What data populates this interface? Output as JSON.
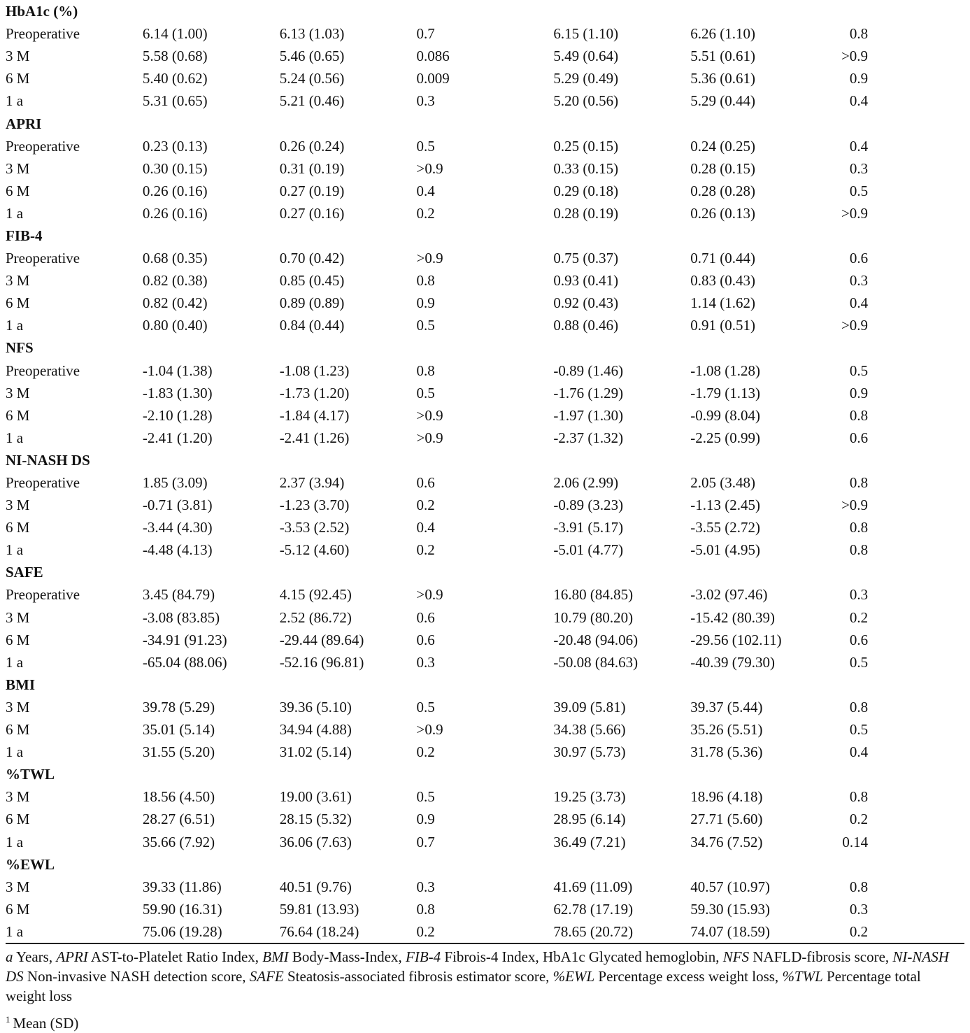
{
  "sections": [
    {
      "title": "HbA1c (%)",
      "rows": [
        {
          "label": "Preoperative",
          "v1": "6.14 (1.00)",
          "v2": "6.13 (1.03)",
          "p1": "0.7",
          "v3": "6.15 (1.10)",
          "v4": "6.26 (1.10)",
          "p2": "0.8"
        },
        {
          "label": "3 M",
          "v1": "5.58 (0.68)",
          "v2": "5.46 (0.65)",
          "p1": "0.086",
          "v3": "5.49 (0.64)",
          "v4": "5.51 (0.61)",
          "p2": ">0.9"
        },
        {
          "label": "6 M",
          "v1": "5.40 (0.62)",
          "v2": "5.24 (0.56)",
          "p1": "0.009",
          "v3": "5.29 (0.49)",
          "v4": "5.36 (0.61)",
          "p2": "0.9"
        },
        {
          "label": "1 a",
          "v1": "5.31 (0.65)",
          "v2": "5.21 (0.46)",
          "p1": "0.3",
          "v3": "5.20 (0.56)",
          "v4": "5.29 (0.44)",
          "p2": "0.4"
        }
      ]
    },
    {
      "title": "APRI",
      "rows": [
        {
          "label": "Preoperative",
          "v1": "0.23 (0.13)",
          "v2": "0.26 (0.24)",
          "p1": "0.5",
          "v3": "0.25 (0.15)",
          "v4": "0.24 (0.25)",
          "p2": "0.4"
        },
        {
          "label": "3 M",
          "v1": "0.30 (0.15)",
          "v2": "0.31 (0.19)",
          "p1": ">0.9",
          "v3": "0.33 (0.15)",
          "v4": "0.28 (0.15)",
          "p2": "0.3"
        },
        {
          "label": "6 M",
          "v1": "0.26 (0.16)",
          "v2": "0.27 (0.19)",
          "p1": "0.4",
          "v3": "0.29 (0.18)",
          "v4": "0.28 (0.28)",
          "p2": "0.5"
        },
        {
          "label": "1 a",
          "v1": "0.26 (0.16)",
          "v2": "0.27 (0.16)",
          "p1": "0.2",
          "v3": "0.28 (0.19)",
          "v4": "0.26 (0.13)",
          "p2": ">0.9"
        }
      ]
    },
    {
      "title": "FIB-4",
      "rows": [
        {
          "label": "Preoperative",
          "v1": "0.68 (0.35)",
          "v2": "0.70 (0.42)",
          "p1": ">0.9",
          "v3": "0.75 (0.37)",
          "v4": "0.71 (0.44)",
          "p2": "0.6"
        },
        {
          "label": "3 M",
          "v1": "0.82 (0.38)",
          "v2": "0.85 (0.45)",
          "p1": "0.8",
          "v3": "0.93 (0.41)",
          "v4": "0.83 (0.43)",
          "p2": "0.3"
        },
        {
          "label": "6 M",
          "v1": "0.82 (0.42)",
          "v2": "0.89 (0.89)",
          "p1": "0.9",
          "v3": "0.92 (0.43)",
          "v4": "1.14 (1.62)",
          "p2": "0.4"
        },
        {
          "label": "1 a",
          "v1": "0.80 (0.40)",
          "v2": "0.84 (0.44)",
          "p1": "0.5",
          "v3": "0.88 (0.46)",
          "v4": "0.91 (0.51)",
          "p2": ">0.9"
        }
      ]
    },
    {
      "title": "NFS",
      "rows": [
        {
          "label": "Preoperative",
          "v1": "-1.04 (1.38)",
          "v2": "-1.08 (1.23)",
          "p1": "0.8",
          "v3": "-0.89 (1.46)",
          "v4": "-1.08 (1.28)",
          "p2": "0.5"
        },
        {
          "label": "3 M",
          "v1": "-1.83 (1.30)",
          "v2": "-1.73 (1.20)",
          "p1": "0.5",
          "v3": "-1.76 (1.29)",
          "v4": "-1.79 (1.13)",
          "p2": "0.9"
        },
        {
          "label": "6 M",
          "v1": "-2.10 (1.28)",
          "v2": "-1.84 (4.17)",
          "p1": ">0.9",
          "v3": "-1.97 (1.30)",
          "v4": "-0.99 (8.04)",
          "p2": "0.8"
        },
        {
          "label": "1 a",
          "v1": "-2.41 (1.20)",
          "v2": "-2.41 (1.26)",
          "p1": ">0.9",
          "v3": "-2.37 (1.32)",
          "v4": "-2.25 (0.99)",
          "p2": "0.6"
        }
      ]
    },
    {
      "title": "NI-NASH DS",
      "rows": [
        {
          "label": "Preoperative",
          "v1": "1.85 (3.09)",
          "v2": "2.37 (3.94)",
          "p1": "0.6",
          "v3": "2.06 (2.99)",
          "v4": "2.05 (3.48)",
          "p2": "0.8"
        },
        {
          "label": "3 M",
          "v1": "-0.71 (3.81)",
          "v2": "-1.23 (3.70)",
          "p1": "0.2",
          "v3": "-0.89 (3.23)",
          "v4": "-1.13 (2.45)",
          "p2": ">0.9"
        },
        {
          "label": "6 M",
          "v1": "-3.44 (4.30)",
          "v2": "-3.53 (2.52)",
          "p1": "0.4",
          "v3": "-3.91 (5.17)",
          "v4": "-3.55 (2.72)",
          "p2": "0.8"
        },
        {
          "label": "1 a",
          "v1": "-4.48 (4.13)",
          "v2": "-5.12 (4.60)",
          "p1": "0.2",
          "v3": "-5.01 (4.77)",
          "v4": "-5.01 (4.95)",
          "p2": "0.8"
        }
      ]
    },
    {
      "title": "SAFE",
      "rows": [
        {
          "label": "Preoperative",
          "v1": "3.45 (84.79)",
          "v2": "4.15 (92.45)",
          "p1": ">0.9",
          "v3": "16.80 (84.85)",
          "v4": "-3.02 (97.46)",
          "p2": "0.3"
        },
        {
          "label": "3 M",
          "v1": "-3.08 (83.85)",
          "v2": "2.52 (86.72)",
          "p1": "0.6",
          "v3": "10.79 (80.20)",
          "v4": "-15.42 (80.39)",
          "p2": "0.2"
        },
        {
          "label": "6 M",
          "v1": "-34.91 (91.23)",
          "v2": "-29.44 (89.64)",
          "p1": "0.6",
          "v3": "-20.48 (94.06)",
          "v4": "-29.56 (102.11)",
          "p2": "0.6"
        },
        {
          "label": "1 a",
          "v1": "-65.04 (88.06)",
          "v2": "-52.16 (96.81)",
          "p1": "0.3",
          "v3": "-50.08 (84.63)",
          "v4": "-40.39 (79.30)",
          "p2": "0.5"
        }
      ]
    },
    {
      "title": "BMI",
      "rows": [
        {
          "label": "3 M",
          "v1": "39.78 (5.29)",
          "v2": "39.36 (5.10)",
          "p1": "0.5",
          "v3": "39.09 (5.81)",
          "v4": "39.37 (5.44)",
          "p2": "0.8"
        },
        {
          "label": "6 M",
          "v1": "35.01 (5.14)",
          "v2": "34.94 (4.88)",
          "p1": ">0.9",
          "v3": "34.38 (5.66)",
          "v4": "35.26 (5.51)",
          "p2": "0.5"
        },
        {
          "label": "1 a",
          "v1": "31.55 (5.20)",
          "v2": "31.02 (5.14)",
          "p1": "0.2",
          "v3": "30.97 (5.73)",
          "v4": "31.78 (5.36)",
          "p2": "0.4"
        }
      ]
    },
    {
      "title": "%TWL",
      "rows": [
        {
          "label": "3 M",
          "v1": "18.56 (4.50)",
          "v2": "19.00 (3.61)",
          "p1": "0.5",
          "v3": "19.25 (3.73)",
          "v4": "18.96 (4.18)",
          "p2": "0.8"
        },
        {
          "label": "6 M",
          "v1": "28.27 (6.51)",
          "v2": "28.15 (5.32)",
          "p1": "0.9",
          "v3": "28.95 (6.14)",
          "v4": "27.71 (5.60)",
          "p2": "0.2"
        },
        {
          "label": "1 a",
          "v1": "35.66 (7.92)",
          "v2": "36.06 (7.63)",
          "p1": "0.7",
          "v3": "36.49 (7.21)",
          "v4": "34.76 (7.52)",
          "p2": "0.14"
        }
      ]
    },
    {
      "title": "%EWL",
      "rows": [
        {
          "label": "3 M",
          "v1": "39.33 (11.86)",
          "v2": "40.51 (9.76)",
          "p1": "0.3",
          "v3": "41.69 (11.09)",
          "v4": "40.57 (10.97)",
          "p2": "0.8"
        },
        {
          "label": "6 M",
          "v1": "59.90 (16.31)",
          "v2": "59.81 (13.93)",
          "p1": "0.8",
          "v3": "62.78 (17.19)",
          "v4": "59.30 (15.93)",
          "p2": "0.3"
        },
        {
          "label": "1 a",
          "v1": "75.06 (19.28)",
          "v2": "76.64 (18.24)",
          "p1": "0.2",
          "v3": "78.65 (20.72)",
          "v4": "74.07 (18.59)",
          "p2": "0.2"
        }
      ]
    }
  ],
  "footnote": [
    {
      "abbr": "a",
      "text": " Years, "
    },
    {
      "abbr": "APRI",
      "text": " AST-to-Platelet Ratio Index, "
    },
    {
      "abbr": "BMI",
      "text": " Body-Mass-Index, "
    },
    {
      "abbr": "FIB-4",
      "text": " Fibrois-4 Index, HbA1c Glycated hemoglobin, "
    },
    {
      "abbr": "NFS",
      "text": " NAFLD-fibrosis score, "
    },
    {
      "abbr": "NI-NASH DS",
      "text": " Non-invasive NASH detection score, "
    },
    {
      "abbr": "SAFE",
      "text": " Steatosis-associated fibrosis estimator score, "
    },
    {
      "abbr": "%EWL",
      "text": " Percentage excess weight loss, "
    },
    {
      "abbr": "%TWL",
      "text": " Percentage total weight loss"
    }
  ],
  "note": {
    "marker": "1",
    "text": "Mean (SD)"
  }
}
